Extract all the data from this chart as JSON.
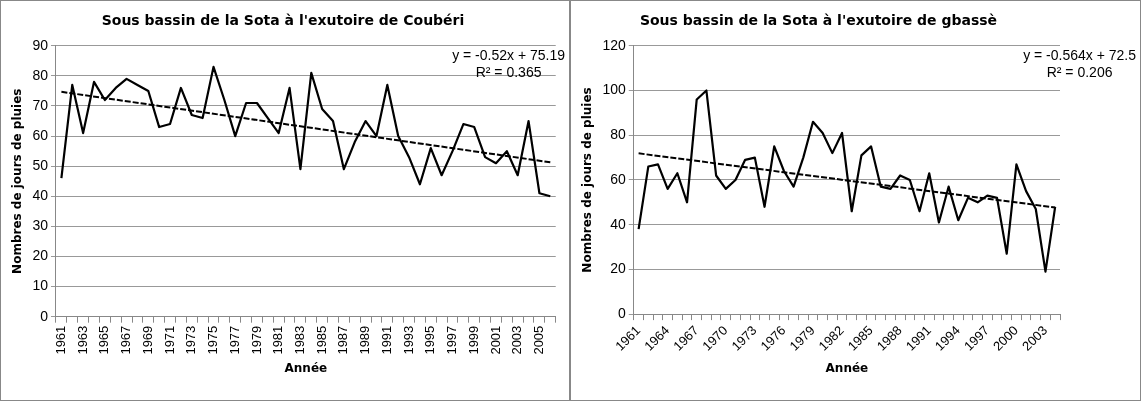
{
  "chart_data": [
    {
      "type": "line",
      "title": "Sous bassin de la Sota à l'exutoire de Coubéri",
      "xlabel": "Année",
      "ylabel": "Nombres de jours de pluies",
      "categories": [
        "1961",
        null,
        "1963",
        null,
        "1965",
        null,
        "1967",
        null,
        "1969",
        null,
        "1971",
        null,
        "1973",
        null,
        "1975",
        null,
        "1977",
        null,
        "1979",
        null,
        "1981",
        null,
        "1983",
        null,
        "1985",
        null,
        "1987",
        null,
        "1989",
        null,
        "1991",
        null,
        "1993",
        null,
        "1995",
        null,
        "1997",
        null,
        "1999",
        null,
        "2001",
        null,
        "2003",
        null,
        "2005",
        null
      ],
      "series": [
        {
          "color": "#000000",
          "line_style": "solid",
          "values": [
            46,
            77,
            61,
            78,
            72,
            76,
            79,
            77,
            75,
            63,
            64,
            76,
            67,
            66,
            83,
            72,
            60,
            71,
            71,
            66,
            61,
            76,
            49,
            81,
            69,
            65,
            49,
            58,
            65,
            60,
            77,
            60,
            53,
            44,
            56,
            47,
            55,
            64,
            63,
            53,
            51,
            55,
            47,
            65,
            41,
            40
          ]
        },
        {
          "type": "line",
          "color": "#000000",
          "line_style": "dashed",
          "values": [
            74.7,
            null,
            null,
            null,
            null,
            null,
            null,
            null,
            null,
            null,
            null,
            null,
            null,
            null,
            null,
            null,
            null,
            null,
            null,
            null,
            null,
            null,
            null,
            null,
            null,
            null,
            null,
            null,
            null,
            null,
            null,
            null,
            null,
            null,
            null,
            null,
            null,
            null,
            null,
            null,
            null,
            null,
            null,
            null,
            null,
            51.3
          ]
        }
      ],
      "ylim": [
        0,
        90
      ],
      "yticks": [
        0,
        10,
        20,
        30,
        40,
        50,
        60,
        70,
        80,
        90
      ],
      "grid": "y",
      "marker": "none",
      "annotations": [
        "y = -0.52x + 75.19",
        "R² = 0.365"
      ]
    },
    {
      "type": "line",
      "title": "Sous bassin de la Sota à l'exutoire de gbassè",
      "xlabel": "Année",
      "ylabel": "Nombres de jours de pluies",
      "categories": [
        "1961",
        null,
        null,
        "1964",
        null,
        null,
        "1967",
        null,
        null,
        "1970",
        null,
        null,
        "1973",
        null,
        null,
        "1976",
        null,
        null,
        "1979",
        null,
        null,
        "1982",
        null,
        null,
        "1985",
        null,
        null,
        "1988",
        null,
        null,
        "1991",
        null,
        null,
        "1994",
        null,
        null,
        "1997",
        null,
        null,
        "2000",
        null,
        null,
        "2003",
        null
      ],
      "series": [
        {
          "color": "#000000",
          "line_style": "solid",
          "values": [
            38,
            66,
            67,
            56,
            63,
            50,
            96,
            100,
            62,
            56,
            60,
            69,
            70,
            48,
            75,
            64,
            57,
            70,
            86,
            81,
            72,
            81,
            46,
            71,
            75,
            57,
            56,
            62,
            60,
            46,
            63,
            41,
            57,
            42,
            52,
            50,
            53,
            52,
            27,
            67,
            55,
            47,
            19,
            48
          ]
        },
        {
          "type": "line",
          "color": "#000000",
          "line_style": "dashed",
          "values": [
            71.9,
            null,
            null,
            null,
            null,
            null,
            null,
            null,
            null,
            null,
            null,
            null,
            null,
            null,
            null,
            null,
            null,
            null,
            null,
            null,
            null,
            null,
            null,
            null,
            null,
            null,
            null,
            null,
            null,
            null,
            null,
            null,
            null,
            null,
            null,
            null,
            null,
            null,
            null,
            null,
            null,
            null,
            null,
            47.7
          ]
        }
      ],
      "ylim": [
        0,
        120
      ],
      "yticks": [
        0,
        20,
        40,
        60,
        80,
        100,
        120
      ],
      "grid": "y",
      "marker": "none",
      "annotations": [
        "y = -0.564x + 72.5",
        "R² = 0.206"
      ]
    }
  ]
}
